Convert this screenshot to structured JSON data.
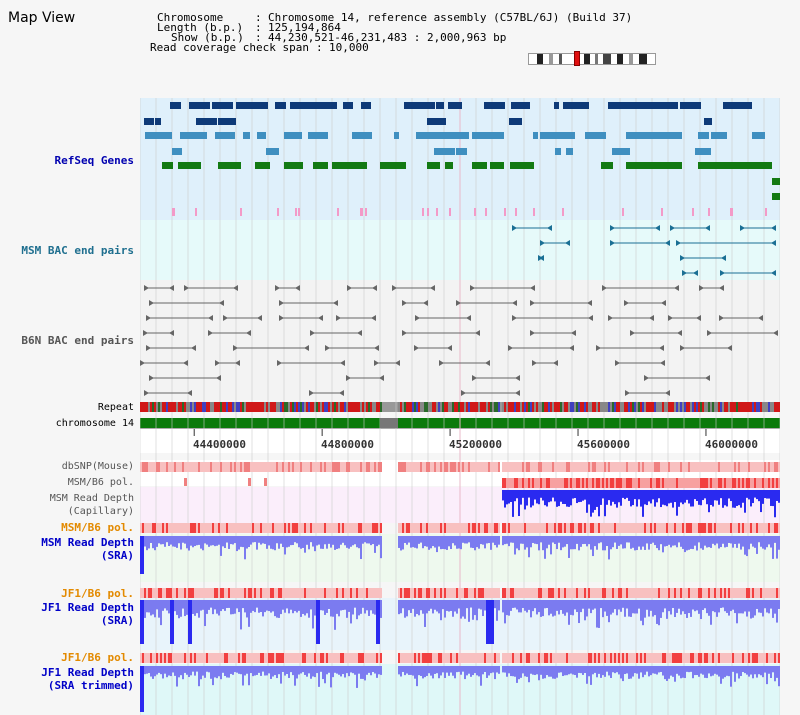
{
  "view_title": "Map View",
  "info": {
    "chromosome_label": "Chromosome",
    "chromosome_value": "Chromosome 14, reference assembly (C57BL/6J) (Build 37)",
    "length_label": "Length (b.p.)",
    "length_value": "125,194,864",
    "show_label": "Show (b.p.)",
    "show_value": "44,230,521-46,231,483 : 2,000,963 bp",
    "coverage_label": "Read coverage check span",
    "coverage_value": "10,000"
  },
  "track_labels": {
    "refseq": "RefSeq Genes",
    "msm_bac": "MSM BAC end pairs",
    "b6n_bac": "B6N BAC end pairs",
    "repeat": "Repeat",
    "chromosome": "chromosome 14",
    "dbsnp": "dbSNP(Mouse)",
    "msm_b6_pol_1": "MSM/B6 pol.",
    "msm_read_depth_cap_1": "MSM Read Depth",
    "msm_read_depth_cap_2": "(Capillary)",
    "msm_b6_pol_2": "MSM/B6 pol.",
    "msm_read_depth_sra_1": "MSM Read Depth",
    "msm_read_depth_sra_2": "(SRA)",
    "jf1_b6_pol_1": "JF1/B6 pol.",
    "jf1_read_depth_sra_1": "JF1 Read Depth",
    "jf1_read_depth_sra_2": "(SRA)",
    "jf1_b6_pol_2": "JF1/B6 pol.",
    "jf1_read_depth_trim_1": "JF1 Read Depth",
    "jf1_read_depth_trim_2": "(SRA trimmed)"
  },
  "axis": {
    "ticks": [
      "44400000",
      "44800000",
      "45200000",
      "45600000",
      "46000000"
    ],
    "tick_values": [
      44400000,
      44800000,
      45200000,
      45600000,
      46000000
    ],
    "range_start": 44230521,
    "range_end": 46231483
  },
  "colors": {
    "refseq_bg": "#dff0fb",
    "msm_bac_bg": "#e6fafa",
    "b6n_bac_bg": "#f3f3f3",
    "gene_navy": "#0e3a78",
    "gene_blue": "#3f8fc0",
    "gene_green": "#137a13",
    "pink": "#f39ac8",
    "teal": "#1a6f94",
    "chromosome_green": "#0b7a0b",
    "depth_blue": "#2a2af0",
    "depth_light": "#7b7bf0",
    "pol_red": "#f24040",
    "pol_pink": "#f8c0c0"
  }
}
